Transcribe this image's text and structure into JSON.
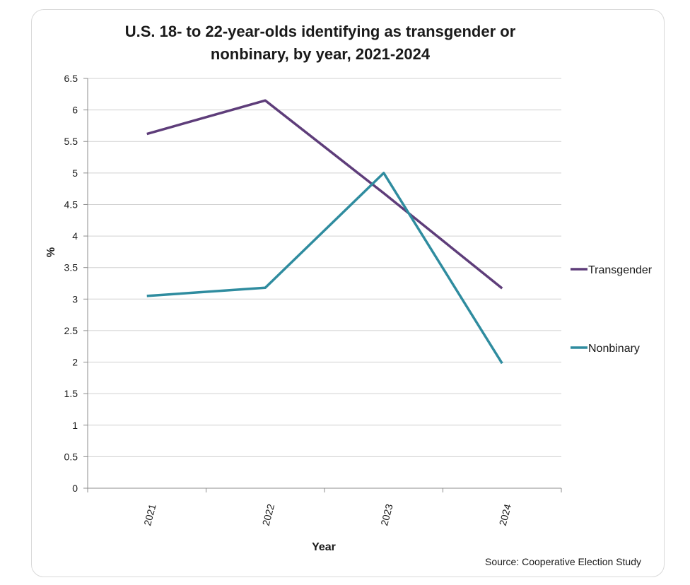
{
  "chart_data": {
    "type": "line",
    "title_line1": "U.S. 18- to 22-year-olds identifying as transgender or",
    "title_line2": "nonbinary, by year, 2021-2024",
    "xlabel": "Year",
    "ylabel": "%",
    "categories": [
      "2021",
      "2022",
      "2023",
      "2024"
    ],
    "ylim": [
      0,
      6.5
    ],
    "yticks": [
      "0",
      "0.5",
      "1",
      "1.5",
      "2",
      "2.5",
      "3",
      "3.5",
      "4",
      "4.5",
      "5",
      "5.5",
      "6",
      "6.5"
    ],
    "grid": "horizontal",
    "legend_position": "right",
    "series": [
      {
        "name": "Transgender",
        "color": "#5e3d7a",
        "values": [
          5.62,
          6.15,
          4.68,
          3.17
        ]
      },
      {
        "name": "Nonbinary",
        "color": "#2f8c9f",
        "values": [
          3.05,
          3.18,
          5.0,
          1.98
        ]
      }
    ],
    "source": "Source: Cooperative Election Study"
  }
}
